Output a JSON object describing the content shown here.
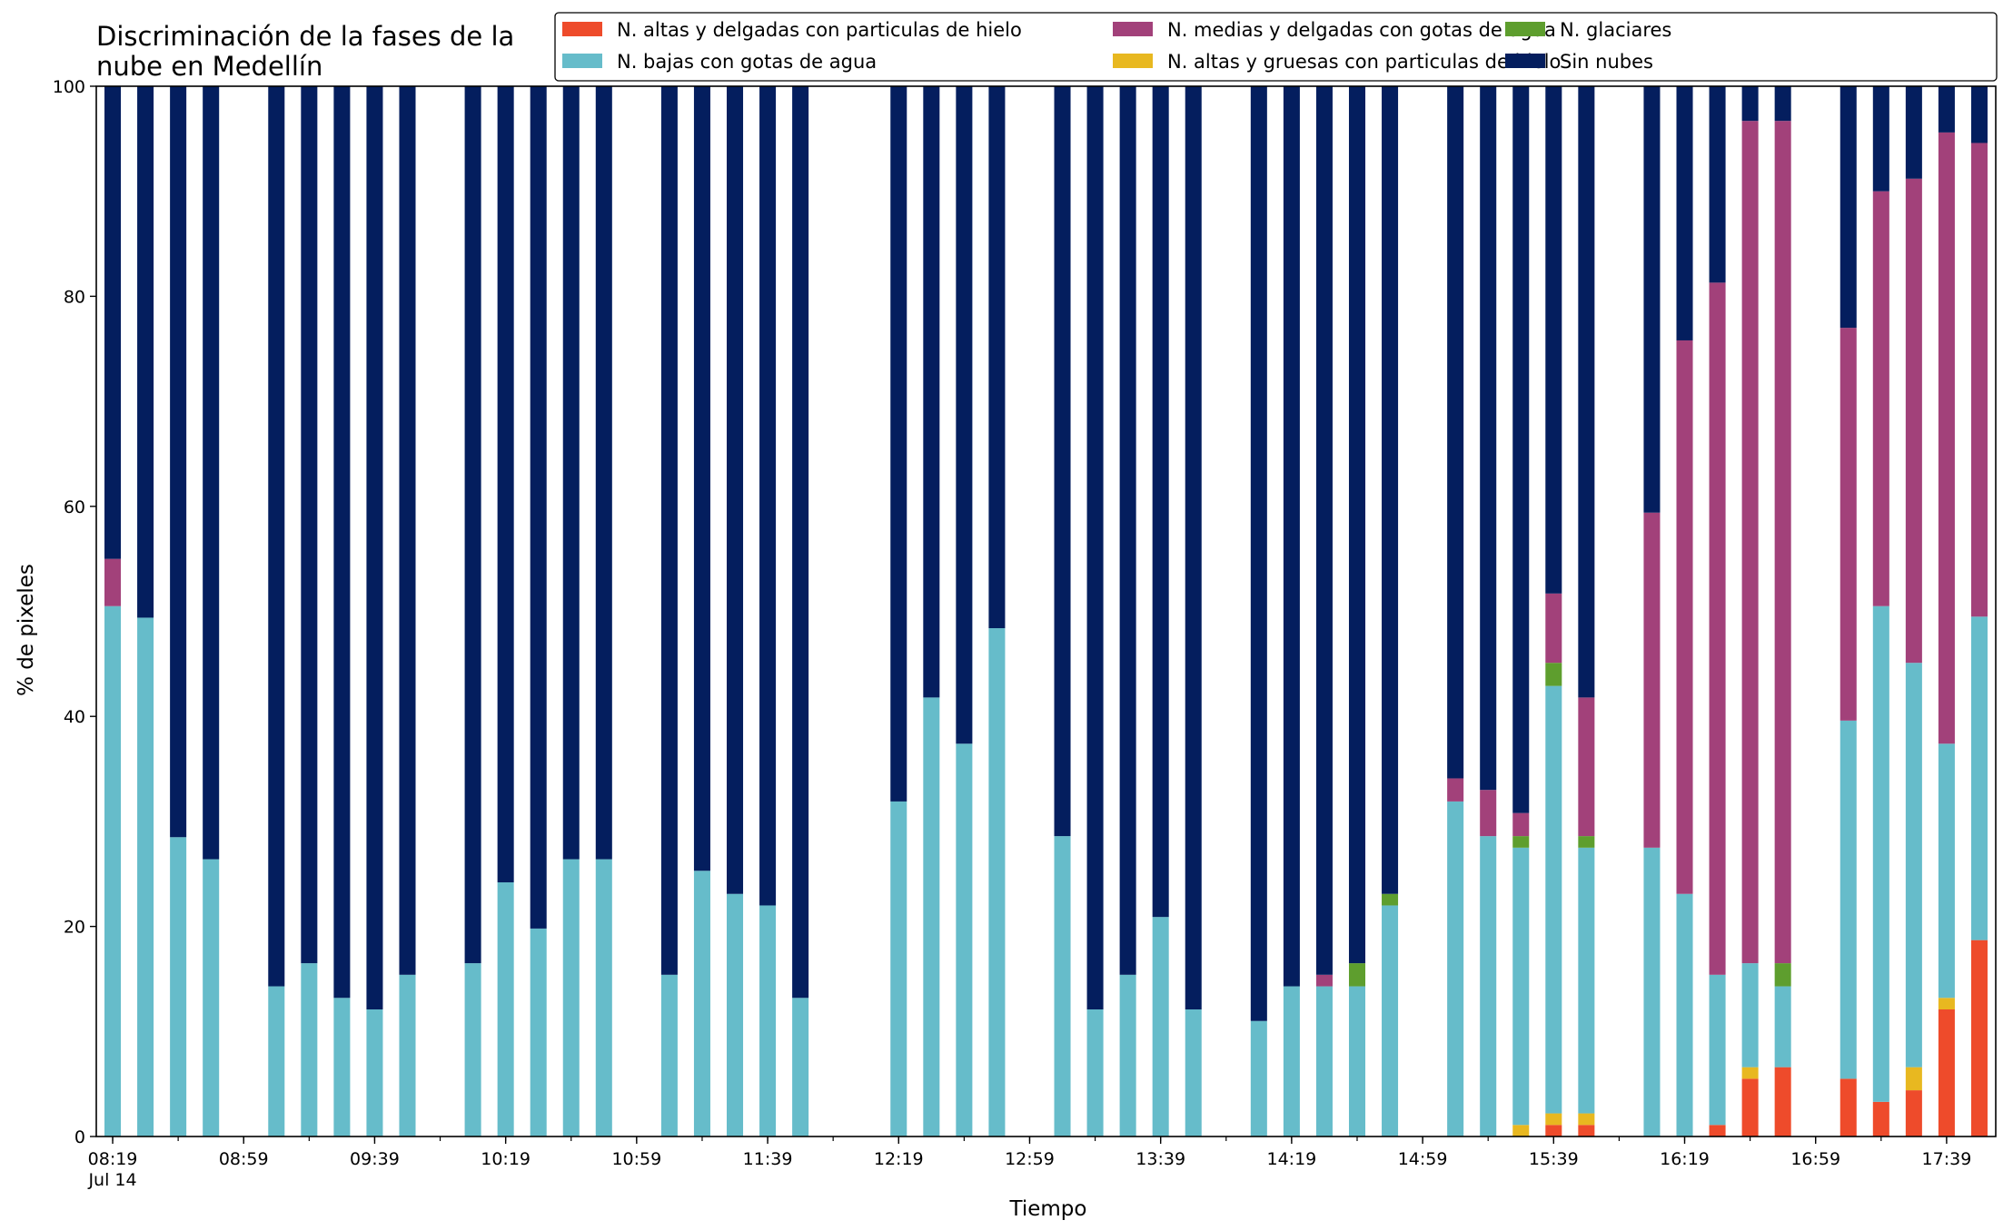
{
  "chart_data": {
    "type": "bar",
    "stacked": true,
    "title_lines": [
      "Discriminación de la fases de la",
      "nube en Medellín"
    ],
    "xlabel": "Tiempo",
    "ylabel": "% de pixeles",
    "ylim": [
      0,
      100
    ],
    "yticks": [
      0,
      20,
      40,
      60,
      80,
      100
    ],
    "xlim": [
      "08:14",
      "17:54"
    ],
    "x_tick_labels": [
      "08:19",
      "08:59",
      "09:39",
      "10:19",
      "10:59",
      "11:39",
      "12:19",
      "12:59",
      "13:39",
      "14:19",
      "14:59",
      "15:39",
      "16:19",
      "16:59",
      "17:39"
    ],
    "x_date_label": "Jul 14",
    "bar_interval_minutes": 10,
    "bar_width_minutes": 5,
    "grid": false,
    "legend_position": "top-right",
    "series": [
      {
        "name": "N. altas y delgadas con particulas de hielo",
        "color": "#EE4B2B"
      },
      {
        "name": "N. altas y gruesas con particulas de hielo",
        "color": "#E8B820"
      },
      {
        "name": "N. bajas con gotas de agua",
        "color": "#66BCCA"
      },
      {
        "name": "N. glaciares",
        "color": "#5E9E2E"
      },
      {
        "name": "N. medias y delgadas con gotas de agua",
        "color": "#A2417A"
      },
      {
        "name": "Sin nubes",
        "color": "#041E5E"
      }
    ],
    "legend_order": [
      0,
      2,
      4,
      1,
      3,
      5
    ],
    "times": [
      "08:19",
      "08:29",
      "08:39",
      "08:49",
      "09:09",
      "09:19",
      "09:29",
      "09:39",
      "09:49",
      "10:09",
      "10:19",
      "10:29",
      "10:39",
      "10:49",
      "11:09",
      "11:19",
      "11:29",
      "11:39",
      "11:49",
      "12:19",
      "12:29",
      "12:39",
      "12:49",
      "13:09",
      "13:19",
      "13:29",
      "13:39",
      "13:49",
      "14:09",
      "14:19",
      "14:29",
      "14:39",
      "14:49",
      "15:09",
      "15:19",
      "15:29",
      "15:39",
      "15:49",
      "16:09",
      "16:19",
      "16:29",
      "16:39",
      "16:49",
      "17:09",
      "17:19",
      "17:29",
      "17:39",
      "17:49"
    ],
    "values": [
      [
        0,
        0,
        50.5,
        0,
        4.5,
        45
      ],
      [
        0,
        0,
        49.4,
        0,
        0,
        50.6
      ],
      [
        0,
        0,
        28.5,
        0,
        0,
        71.5
      ],
      [
        0,
        0,
        26.4,
        0,
        0,
        73.6
      ],
      [
        0,
        0,
        14.3,
        0,
        0,
        85.7
      ],
      [
        0,
        0,
        16.5,
        0,
        0,
        83.5
      ],
      [
        0,
        0,
        13.2,
        0,
        0,
        86.8
      ],
      [
        0,
        0,
        12.1,
        0,
        0,
        87.9
      ],
      [
        0,
        0,
        15.4,
        0,
        0,
        84.6
      ],
      [
        0,
        0,
        16.5,
        0,
        0,
        83.5
      ],
      [
        0,
        0,
        24.2,
        0,
        0,
        75.8
      ],
      [
        0,
        0,
        19.8,
        0,
        0,
        80.2
      ],
      [
        0,
        0,
        26.4,
        0,
        0,
        73.6
      ],
      [
        0,
        0,
        26.4,
        0,
        0,
        73.6
      ],
      [
        0,
        0,
        15.4,
        0,
        0,
        84.6
      ],
      [
        0,
        0,
        25.3,
        0,
        0,
        74.7
      ],
      [
        0,
        0,
        23.1,
        0,
        0,
        76.9
      ],
      [
        0,
        0,
        22,
        0,
        0,
        78
      ],
      [
        0,
        0,
        13.2,
        0,
        0,
        86.8
      ],
      [
        0,
        0,
        31.9,
        0,
        0,
        68.1
      ],
      [
        0,
        0,
        41.8,
        0,
        0,
        58.2
      ],
      [
        0,
        0,
        37.4,
        0,
        0,
        62.6
      ],
      [
        0,
        0,
        48.4,
        0,
        0,
        51.6
      ],
      [
        0,
        0,
        28.6,
        0,
        0,
        71.4
      ],
      [
        0,
        0,
        12.1,
        0,
        0,
        87.9
      ],
      [
        0,
        0,
        15.4,
        0,
        0,
        84.6
      ],
      [
        0,
        0,
        20.9,
        0,
        0,
        79.1
      ],
      [
        0,
        0,
        12.1,
        0,
        0,
        87.9
      ],
      [
        0,
        0,
        11,
        0,
        0,
        89
      ],
      [
        0,
        0,
        14.3,
        0,
        0,
        85.7
      ],
      [
        0,
        0,
        14.3,
        0,
        1.1,
        84.6
      ],
      [
        0,
        0,
        14.3,
        2.2,
        0,
        83.5
      ],
      [
        0,
        0,
        22,
        1.1,
        0,
        76.9
      ],
      [
        0,
        0,
        31.9,
        0,
        2.2,
        65.9
      ],
      [
        0,
        0,
        28.6,
        0,
        4.4,
        67
      ],
      [
        0,
        1.1,
        26.4,
        1.1,
        2.2,
        69.2
      ],
      [
        1.1,
        1.1,
        40.7,
        2.2,
        6.6,
        48.3
      ],
      [
        1.1,
        1.1,
        25.3,
        1.1,
        13.2,
        58.2
      ],
      [
        0,
        0,
        27.5,
        0,
        31.9,
        40.6
      ],
      [
        0,
        0,
        23.1,
        0,
        52.7,
        24.2
      ],
      [
        1.1,
        0,
        14.3,
        0,
        65.9,
        18.7
      ],
      [
        5.5,
        1.1,
        9.9,
        0,
        80.2,
        3.3
      ],
      [
        6.6,
        0,
        7.7,
        2.2,
        80.2,
        3.3
      ],
      [
        5.5,
        0,
        34.1,
        0,
        37.4,
        23
      ],
      [
        3.3,
        0,
        47.2,
        0,
        39.5,
        10
      ],
      [
        4.4,
        2.2,
        38.5,
        0,
        46.1,
        8.8
      ],
      [
        12.1,
        1.1,
        24.2,
        0,
        58.2,
        4.4
      ],
      [
        18.7,
        0,
        30.8,
        0,
        45.1,
        5.4
      ]
    ]
  }
}
